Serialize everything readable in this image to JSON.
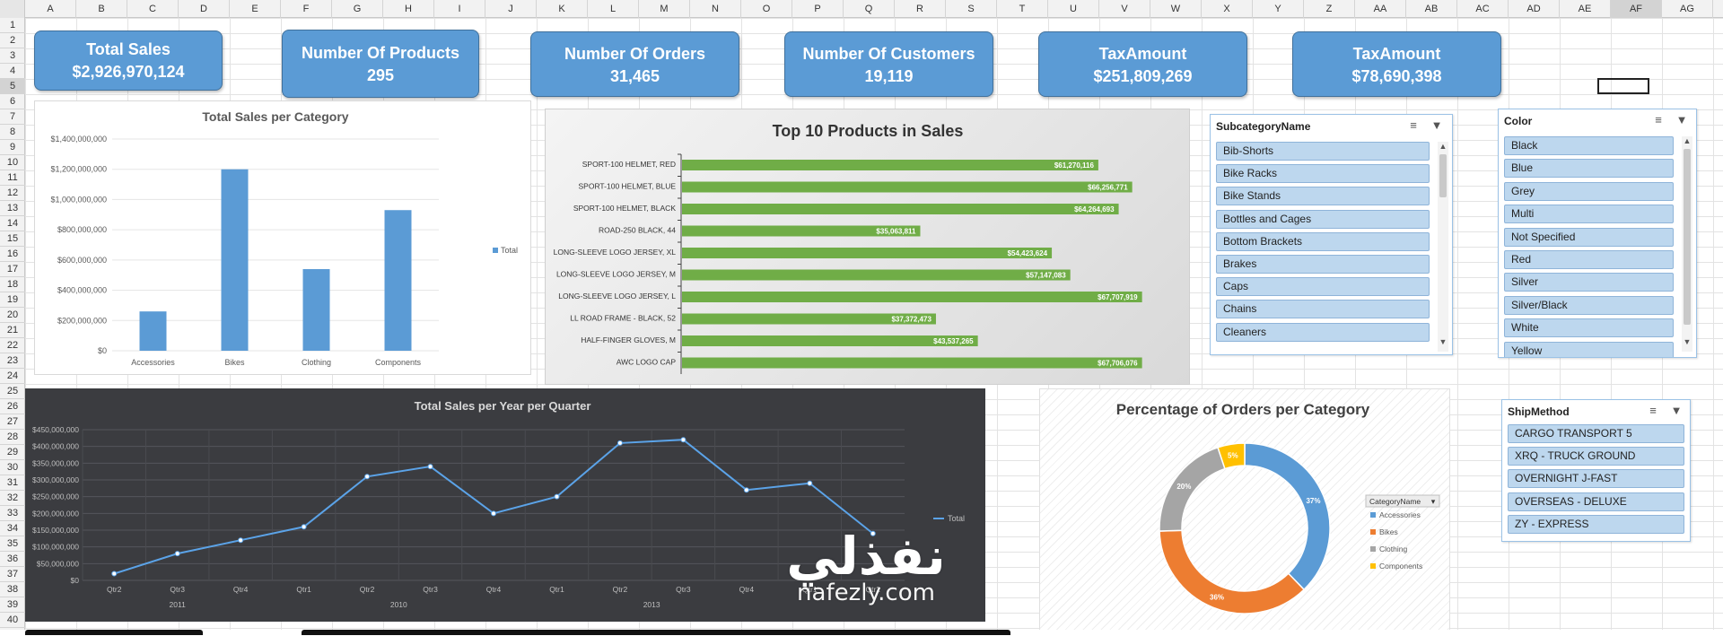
{
  "sheet": {
    "columns": [
      "A",
      "B",
      "C",
      "D",
      "E",
      "F",
      "G",
      "H",
      "I",
      "J",
      "K",
      "L",
      "M",
      "N",
      "O",
      "P",
      "Q",
      "R",
      "S",
      "T",
      "U",
      "V",
      "W",
      "X",
      "Y",
      "Z",
      "AA",
      "AB",
      "AC",
      "AD",
      "AE",
      "AF",
      "AG"
    ],
    "rows": [
      "1",
      "2",
      "3",
      "4",
      "5",
      "6",
      "7",
      "8",
      "9",
      "10",
      "11",
      "12",
      "13",
      "14",
      "15",
      "16",
      "17",
      "18",
      "19",
      "20",
      "21",
      "22",
      "23",
      "24",
      "25",
      "26",
      "27",
      "28",
      "29",
      "30",
      "31",
      "32",
      "33",
      "34",
      "35",
      "36",
      "37",
      "38",
      "39",
      "40"
    ],
    "selected_column": "AF",
    "selected_row": "5"
  },
  "kpis": [
    {
      "title": "Total Sales",
      "value": "$2,926,970,124"
    },
    {
      "title": "Number Of Products",
      "value": "295"
    },
    {
      "title": "Number Of Orders",
      "value": "31,465"
    },
    {
      "title": "Number Of Customers",
      "value": "19,119"
    },
    {
      "title": "TaxAmount",
      "value": "$251,809,269"
    },
    {
      "title": "TaxAmount",
      "value": "$78,690,398"
    }
  ],
  "chart_data": [
    {
      "type": "bar",
      "title": "Total Sales per Category",
      "categories": [
        "Accessories",
        "Bikes",
        "Clothing",
        "Components"
      ],
      "series": [
        {
          "name": "Total",
          "values": [
            260000000,
            1200000000,
            540000000,
            930000000
          ]
        }
      ],
      "ylim": [
        0,
        1400000000
      ],
      "yticks": [
        "$0",
        "$200,000,000",
        "$400,000,000",
        "$600,000,000",
        "$800,000,000",
        "$1,000,000,000",
        "$1,200,000,000",
        "$1,400,000,000"
      ],
      "ytick_values": [
        0,
        200000000,
        400000000,
        600000000,
        800000000,
        1000000000,
        1200000000,
        1400000000
      ],
      "legend": "right",
      "color": "#5b9bd5"
    },
    {
      "type": "bar",
      "orientation": "horizontal",
      "title": "Top 10 Products in Sales",
      "categories": [
        "SPORT-100 HELMET, RED",
        "SPORT-100 HELMET, BLUE",
        "SPORT-100 HELMET, BLACK",
        "ROAD-250 BLACK, 44",
        "LONG-SLEEVE LOGO JERSEY, XL",
        "LONG-SLEEVE LOGO JERSEY, M",
        "LONG-SLEEVE LOGO JERSEY, L",
        "LL ROAD FRAME - BLACK, 52",
        "HALF-FINGER GLOVES, M",
        "AWC LOGO CAP"
      ],
      "values": [
        61270116,
        66256771,
        64264693,
        35063811,
        54423624,
        57147083,
        67707919,
        37372473,
        43537265,
        67706076
      ],
      "value_labels": [
        "$61,270,116",
        "$66,256,771",
        "$64,264,693",
        "$35,063,811",
        "$54,423,624",
        "$57,147,083",
        "$67,707,919",
        "$37,372,473",
        "$43,537,265",
        "$67,706,076"
      ],
      "xlim": [
        0,
        70000000
      ],
      "color": "#70ad47"
    },
    {
      "type": "line",
      "title": "Total Sales per Year per Quarter",
      "categories": [
        "Qtr2",
        "Qtr3",
        "Qtr4",
        "Qtr1",
        "Qtr2",
        "Qtr3",
        "Qtr4",
        "Qtr1",
        "Qtr2",
        "Qtr3",
        "Qtr4",
        "Qtr1",
        "Qtr2"
      ],
      "groups": [
        {
          "label": "2011",
          "start": 0,
          "end": 2
        },
        {
          "label": "2010",
          "start": 3,
          "end": 6
        },
        {
          "label": "2013",
          "start": 7,
          "end": 10
        }
      ],
      "series": [
        {
          "name": "Total",
          "values": [
            20000000,
            80000000,
            120000000,
            160000000,
            310000000,
            340000000,
            200000000,
            250000000,
            410000000,
            420000000,
            270000000,
            290000000,
            140000000
          ]
        }
      ],
      "ylim": [
        0,
        450000000
      ],
      "yticks": [
        "$0",
        "$50,000,000",
        "$100,000,000",
        "$150,000,000",
        "$200,000,000",
        "$250,000,000",
        "$300,000,000",
        "$350,000,000",
        "$400,000,000",
        "$450,000,000"
      ],
      "ytick_values": [
        0,
        50000000,
        100000000,
        150000000,
        200000000,
        250000000,
        300000000,
        350000000,
        400000000,
        450000000
      ],
      "legend": "right",
      "color": "#5ba3e8"
    },
    {
      "type": "pie",
      "variant": "doughnut",
      "title": "Percentage of Orders per Category",
      "legend_title": "CategoryName",
      "categories": [
        "Accessories",
        "Bikes",
        "Clothing",
        "Components"
      ],
      "values": [
        37,
        36,
        20,
        5
      ],
      "value_labels": [
        "37%",
        "36%",
        "20%",
        "5%"
      ],
      "colors": [
        "#5b9bd5",
        "#ed7d31",
        "#a5a5a5",
        "#ffc000"
      ],
      "legend": "right"
    }
  ],
  "slicers": {
    "subcategory": {
      "title": "SubcategoryName",
      "items": [
        "Bib-Shorts",
        "Bike Racks",
        "Bike Stands",
        "Bottles and Cages",
        "Bottom Brackets",
        "Brakes",
        "Caps",
        "Chains",
        "Cleaners"
      ]
    },
    "color": {
      "title": "Color",
      "items": [
        "Black",
        "Blue",
        "Grey",
        "Multi",
        "Not Specified",
        "Red",
        "Silver",
        "Silver/Black",
        "White",
        "Yellow"
      ]
    },
    "shipmethod": {
      "title": "ShipMethod",
      "items": [
        "CARGO TRANSPORT 5",
        "XRQ - TRUCK GROUND",
        "OVERNIGHT J-FAST",
        "OVERSEAS - DELUXE",
        "ZY - EXPRESS"
      ]
    }
  },
  "icons": {
    "multi_select": "multi-select-icon",
    "clear_filter": "clear-filter-icon",
    "legend_dropdown": "chevron-down-icon"
  },
  "watermark": {
    "arabic": "نفذلي",
    "url": "nafezly.com"
  }
}
